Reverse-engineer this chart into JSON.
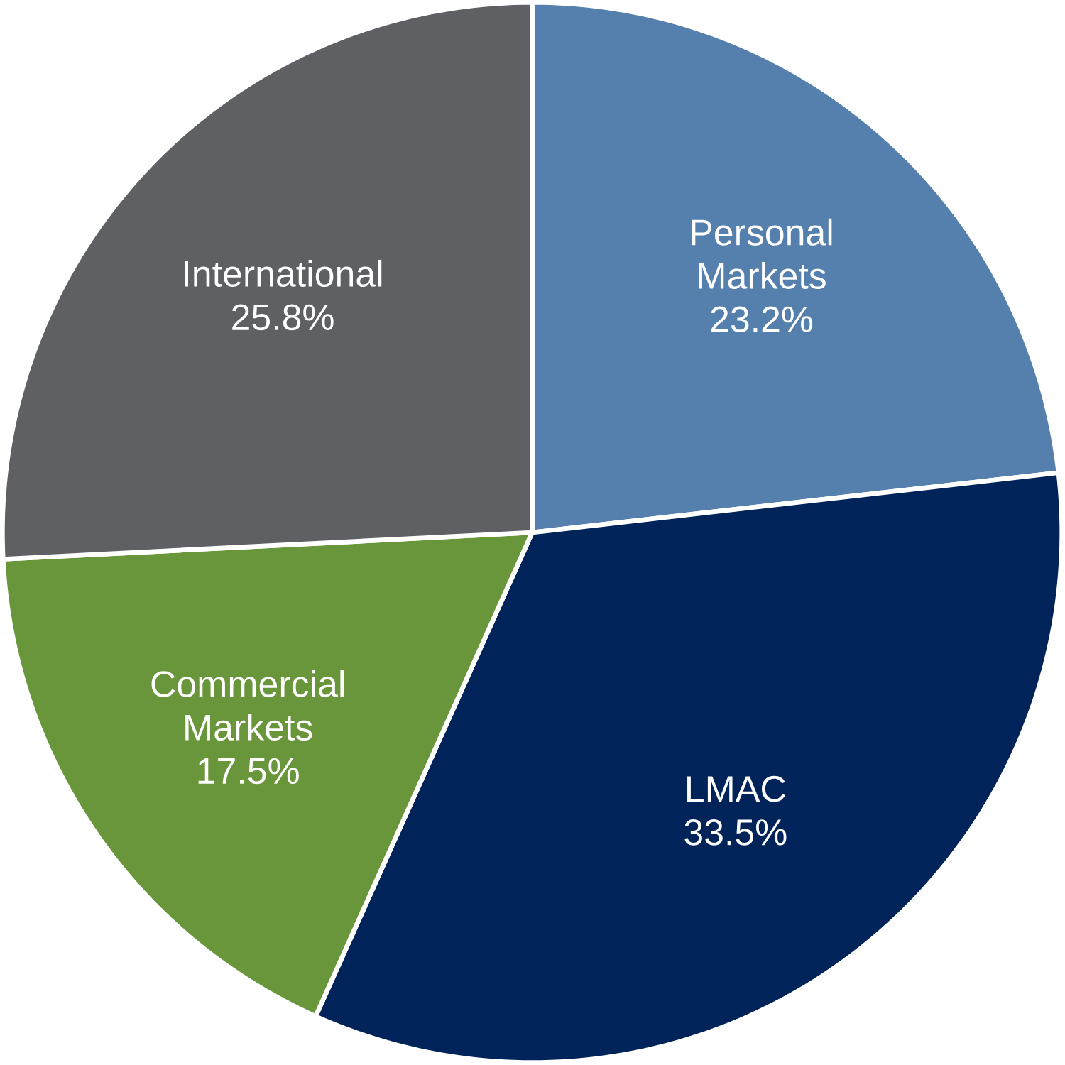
{
  "chart_data": {
    "type": "pie",
    "categories": [
      "Personal Markets",
      "LMAC",
      "Commercial Markets",
      "International"
    ],
    "values": [
      23.2,
      33.5,
      17.5,
      25.8
    ],
    "value_labels": [
      "23.2%",
      "33.5%",
      "17.5%",
      "25.8%"
    ],
    "colors": [
      "#5580ad",
      "#002359",
      "#6a963b",
      "#5f6064"
    ]
  }
}
